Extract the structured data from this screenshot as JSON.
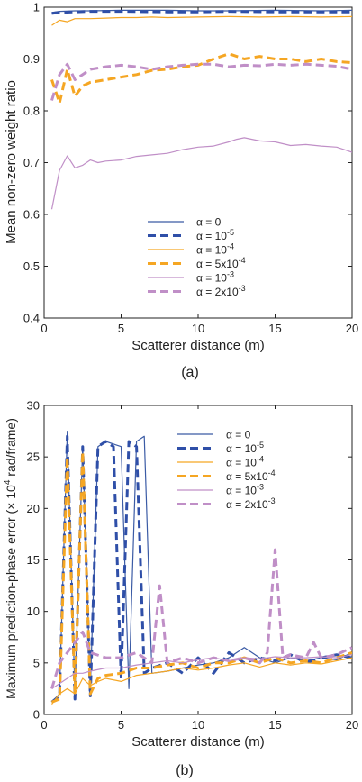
{
  "chart_data": [
    {
      "type": "line",
      "caption": "(a)",
      "xlabel": "Scatterer distance (m)",
      "ylabel": "Mean non-zero weight ratio",
      "xlim": [
        0,
        20
      ],
      "ylim": [
        0.4,
        1.0
      ],
      "xticks": [
        "0",
        "5",
        "10",
        "15",
        "20"
      ],
      "yticks": [
        "0.4",
        "0.5",
        "0.6",
        "0.7",
        "0.8",
        "0.9",
        "1"
      ],
      "legend_position": "lower-center",
      "series": [
        {
          "name": "α = 0",
          "legend_base": "α = 0",
          "legend_exp": "",
          "color": "#3b5ba5",
          "dash": "solid",
          "width": 1.2,
          "x": [
            0.5,
            1,
            2,
            3,
            5,
            8,
            10,
            12,
            15,
            18,
            20
          ],
          "y": [
            0.99,
            0.992,
            0.993,
            0.993,
            0.994,
            0.994,
            0.993,
            0.993,
            0.994,
            0.993,
            0.994
          ]
        },
        {
          "name": "α = 10-5",
          "legend_base": "α = 10",
          "legend_exp": "-5",
          "color": "#2f4fa8",
          "dash": "dashed",
          "width": 3,
          "x": [
            0.5,
            1,
            2,
            3,
            5,
            8,
            10,
            12,
            15,
            18,
            20
          ],
          "y": [
            0.988,
            0.99,
            0.991,
            0.992,
            0.992,
            0.991,
            0.991,
            0.992,
            0.991,
            0.991,
            0.991
          ]
        },
        {
          "name": "α = 10-4",
          "legend_base": "α = 10",
          "legend_exp": "-4",
          "color": "#f5a623",
          "dash": "solid",
          "width": 1.2,
          "x": [
            0.5,
            1,
            1.5,
            2,
            3,
            4,
            5,
            6,
            7,
            8,
            10,
            12,
            14,
            16,
            18,
            20
          ],
          "y": [
            0.965,
            0.975,
            0.972,
            0.978,
            0.978,
            0.979,
            0.98,
            0.98,
            0.981,
            0.98,
            0.981,
            0.982,
            0.981,
            0.982,
            0.981,
            0.982
          ]
        },
        {
          "name": "α = 5x10-4",
          "legend_base": "α = 5x10",
          "legend_exp": "-4",
          "color": "#f5a623",
          "dash": "dashed",
          "width": 3,
          "x": [
            0.5,
            1,
            1.5,
            2,
            2.5,
            3,
            4,
            5,
            6,
            7,
            8,
            9,
            10,
            11,
            12,
            13,
            14,
            15,
            16,
            17,
            18,
            19,
            20
          ],
          "y": [
            0.86,
            0.815,
            0.88,
            0.828,
            0.848,
            0.855,
            0.86,
            0.865,
            0.87,
            0.878,
            0.88,
            0.885,
            0.888,
            0.9,
            0.91,
            0.9,
            0.905,
            0.9,
            0.9,
            0.895,
            0.9,
            0.895,
            0.893
          ]
        },
        {
          "name": "α = 10-3",
          "legend_base": "α = 10",
          "legend_exp": "-3",
          "color": "#c08fc7",
          "dash": "solid",
          "width": 1.2,
          "x": [
            0.5,
            1,
            1.5,
            2,
            2.5,
            3,
            3.5,
            4,
            5,
            6,
            7,
            8,
            9,
            10,
            11,
            12,
            12.5,
            13,
            14,
            15,
            16,
            17,
            18,
            19,
            20
          ],
          "y": [
            0.61,
            0.685,
            0.713,
            0.69,
            0.695,
            0.705,
            0.7,
            0.703,
            0.705,
            0.712,
            0.715,
            0.718,
            0.725,
            0.73,
            0.732,
            0.74,
            0.745,
            0.748,
            0.742,
            0.74,
            0.733,
            0.735,
            0.732,
            0.73,
            0.72
          ]
        },
        {
          "name": "α = 2x10-3",
          "legend_base": "α = 2x10",
          "legend_exp": "-3",
          "color": "#c08fc7",
          "dash": "dashed",
          "width": 3,
          "x": [
            0.5,
            1,
            1.5,
            2,
            2.5,
            3,
            4,
            5,
            6,
            7,
            8,
            9,
            10,
            11,
            12,
            13,
            14,
            15,
            16,
            17,
            18,
            19,
            20
          ],
          "y": [
            0.82,
            0.87,
            0.89,
            0.86,
            0.87,
            0.88,
            0.885,
            0.888,
            0.885,
            0.88,
            0.885,
            0.888,
            0.89,
            0.89,
            0.885,
            0.888,
            0.887,
            0.89,
            0.888,
            0.89,
            0.888,
            0.886,
            0.88
          ]
        }
      ]
    },
    {
      "type": "line",
      "caption": "(b)",
      "xlabel": "Scatterer distance (m)",
      "ylabel_main": "Maximum prediction-phase error (",
      "ylabel_mult": "× 10",
      "ylabel_exp": "4",
      "ylabel_unit": " rad/frame)",
      "xlim": [
        0,
        20
      ],
      "ylim": [
        0,
        30
      ],
      "xticks": [
        "0",
        "5",
        "10",
        "15",
        "20"
      ],
      "yticks": [
        "0",
        "5",
        "10",
        "15",
        "20",
        "25",
        "30"
      ],
      "legend_position": "upper-right",
      "series": [
        {
          "name": "α = 0",
          "legend_base": "α = 0",
          "legend_exp": "",
          "color": "#3b5ba5",
          "dash": "solid",
          "width": 1.2,
          "x": [
            0.5,
            1,
            1.5,
            2,
            2.5,
            3,
            3.5,
            4,
            5,
            5.5,
            6,
            6.5,
            7,
            8,
            9,
            10,
            11,
            12,
            13,
            14,
            15,
            16,
            17,
            18,
            19,
            20
          ],
          "y": [
            1.2,
            2.0,
            27.5,
            2.0,
            26.0,
            2.5,
            26.0,
            26.5,
            26.0,
            2.5,
            26.5,
            27.0,
            4.0,
            4.2,
            4.5,
            4.8,
            5.0,
            5.5,
            6.5,
            5.5,
            5.0,
            5.5,
            5.2,
            5.5,
            5.3,
            6.0
          ]
        },
        {
          "name": "α = 10-5",
          "legend_base": "α = 10",
          "legend_exp": "-5",
          "color": "#2f4fa8",
          "dash": "dashed",
          "width": 3,
          "x": [
            0.5,
            1,
            1.5,
            2,
            2.5,
            3,
            3.5,
            4,
            4.5,
            5,
            5.5,
            6,
            6.5,
            7,
            8,
            9,
            10,
            11,
            12,
            13,
            14,
            15,
            16,
            17,
            18,
            19,
            20
          ],
          "y": [
            1.2,
            1.8,
            27.0,
            1.5,
            26.0,
            1.8,
            26.0,
            26.5,
            26.0,
            3.5,
            26.5,
            26.0,
            4.0,
            4.5,
            5.0,
            4.0,
            5.5,
            4.0,
            6.0,
            5.0,
            5.5,
            5.2,
            5.8,
            5.0,
            5.5,
            5.8,
            5.5
          ]
        },
        {
          "name": "α = 10-4",
          "legend_base": "α = 10",
          "legend_exp": "-4",
          "color": "#f5a623",
          "dash": "solid",
          "width": 1.2,
          "x": [
            0.5,
            1,
            1.5,
            2,
            2.5,
            3,
            3.5,
            4,
            5,
            6,
            7,
            8,
            9,
            10,
            11,
            12,
            13,
            14,
            15,
            16,
            17,
            18,
            19,
            20
          ],
          "y": [
            1.0,
            2.0,
            2.5,
            2.0,
            3.5,
            2.8,
            3.2,
            3.5,
            3.2,
            3.8,
            4.0,
            4.2,
            4.5,
            4.3,
            4.5,
            4.8,
            5.0,
            4.6,
            5.0,
            4.8,
            5.0,
            4.9,
            5.2,
            5.5
          ]
        },
        {
          "name": "α = 5x10-4",
          "legend_base": "α = 5x10",
          "legend_exp": "-4",
          "color": "#f5a623",
          "dash": "dashed",
          "width": 3,
          "x": [
            0.5,
            1,
            1.5,
            2,
            2.5,
            3,
            3.5,
            4,
            5,
            6,
            7,
            8,
            9,
            10,
            11,
            12,
            13,
            14,
            15,
            16,
            17,
            18,
            19,
            20
          ],
          "y": [
            1.2,
            1.5,
            25.0,
            2.0,
            25.5,
            2.0,
            3.5,
            3.8,
            4.0,
            4.5,
            4.5,
            4.8,
            5.0,
            4.5,
            5.0,
            5.0,
            5.5,
            5.0,
            5.5,
            5.0,
            5.2,
            5.0,
            5.5,
            6.0
          ]
        },
        {
          "name": "α = 10-3",
          "legend_base": "α = 10",
          "legend_exp": "-3",
          "color": "#c08fc7",
          "dash": "solid",
          "width": 1.2,
          "x": [
            0.5,
            1,
            1.5,
            2,
            2.5,
            3,
            4,
            5,
            6,
            7,
            8,
            9,
            10,
            11,
            12,
            13,
            14,
            15,
            16,
            17,
            18,
            19,
            20
          ],
          "y": [
            2.5,
            3.0,
            3.5,
            4.0,
            4.0,
            4.2,
            4.5,
            4.5,
            4.8,
            5.0,
            5.2,
            5.0,
            5.3,
            5.5,
            5.2,
            5.5,
            5.4,
            5.6,
            5.5,
            5.5,
            5.6,
            5.5,
            5.8
          ]
        },
        {
          "name": "α = 2x10-3",
          "legend_base": "α = 2x10",
          "legend_exp": "-3",
          "color": "#c08fc7",
          "dash": "dashed",
          "width": 3,
          "x": [
            0.5,
            1,
            1.5,
            2,
            2.5,
            3,
            4,
            5,
            6,
            7,
            7.5,
            8,
            9,
            10,
            11,
            12,
            13,
            14,
            14.5,
            15,
            15.5,
            16,
            17,
            17.5,
            18,
            19,
            20
          ],
          "y": [
            2.5,
            5.0,
            6.0,
            7.0,
            8.0,
            6.0,
            5.5,
            5.5,
            6.0,
            5.0,
            12.5,
            5.0,
            5.5,
            5.0,
            5.5,
            5.2,
            5.5,
            5.0,
            6.0,
            16.0,
            5.5,
            5.8,
            5.5,
            7.0,
            5.5,
            5.8,
            6.5
          ]
        }
      ]
    }
  ]
}
